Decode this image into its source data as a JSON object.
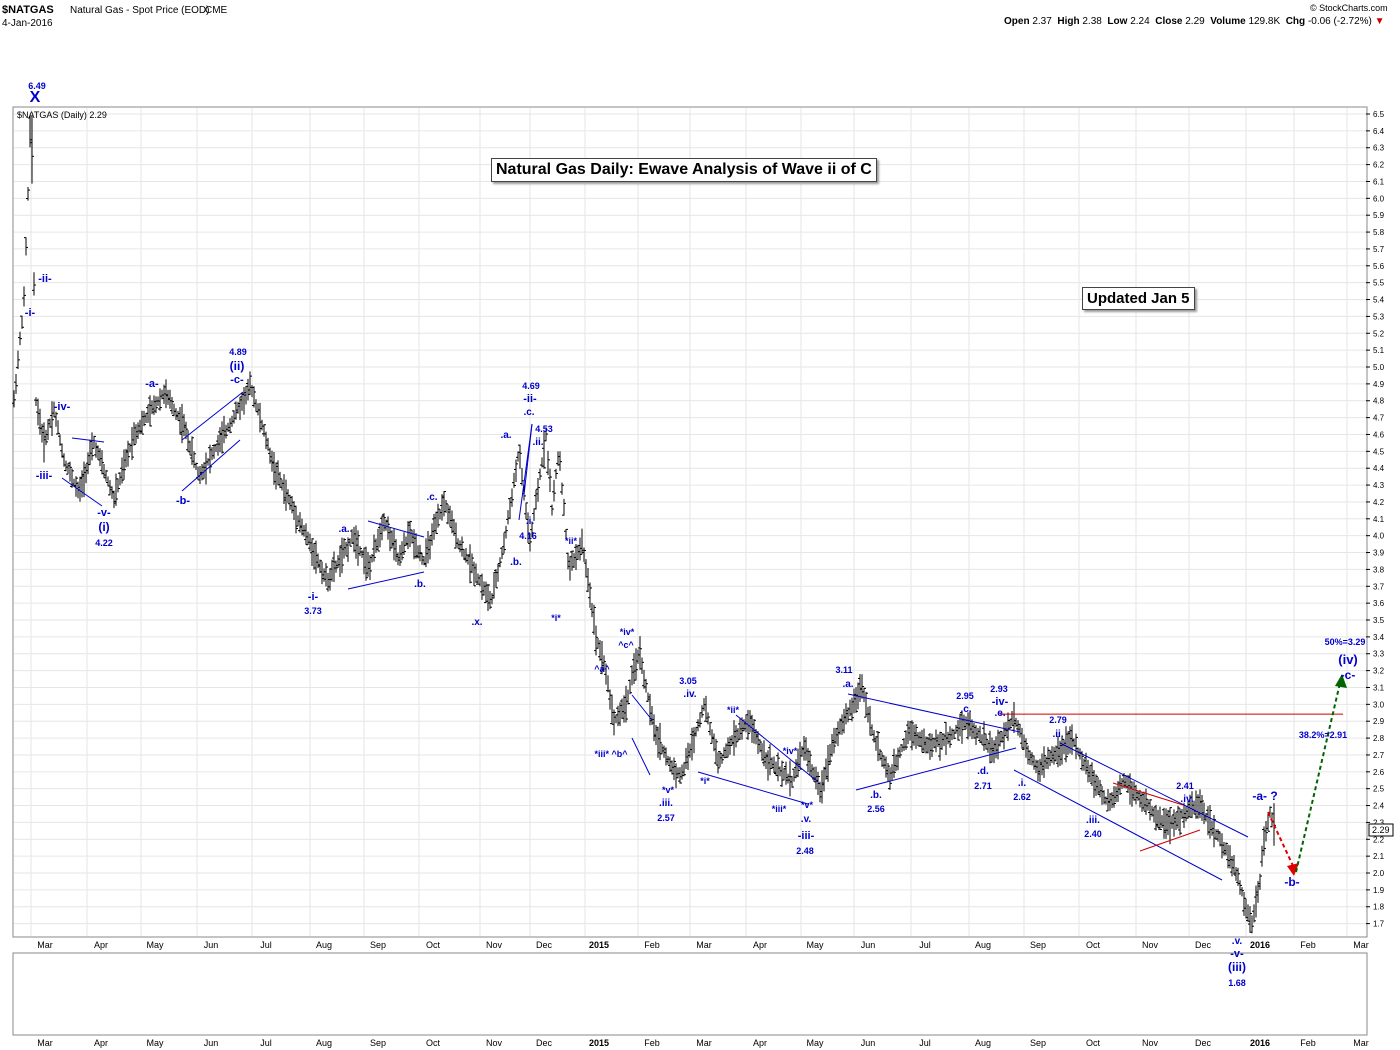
{
  "header": {
    "symbol": "$NATGAS",
    "description": "Natural Gas - Spot Price (EOD)",
    "exchange": "CME",
    "date": "4-Jan-2016",
    "watermark": "© StockCharts.com",
    "open_label": "Open",
    "open": "2.37",
    "high_label": "High",
    "high": "2.38",
    "low_label": "Low",
    "low": "2.24",
    "close_label": "Close",
    "close": "2.29",
    "volume_label": "Volume",
    "volume": "129.8K",
    "chg_label": "Chg",
    "chg": "-0.06 (-2.72%)",
    "chg_arrow": "▼",
    "legend": "$NATGAS (Daily) 2.29"
  },
  "annotations": {
    "title": "Natural Gas Daily: Ewave Analysis of Wave ii of C",
    "updated": "Updated Jan 5"
  },
  "colors": {
    "wave_label": "#0000cc",
    "trend_line": "#0000cc",
    "resistance_line": "#cc0000",
    "bar": "#000000",
    "grid": "#e6e6e6",
    "forecast_down": "#e00000",
    "forecast_up": "#006400"
  },
  "chart_data": {
    "type": "bar",
    "title": "Natural Gas Daily: Ewave Analysis of Wave ii of C",
    "ylim": [
      1.62,
      6.6
    ],
    "y_ticks": [
      "1.7",
      "1.8",
      "1.9",
      "2.0",
      "2.1",
      "2.2",
      "2.3",
      "2.4",
      "2.5",
      "2.6",
      "2.7",
      "2.8",
      "2.9",
      "3.0",
      "3.1",
      "3.2",
      "3.3",
      "3.4",
      "3.5",
      "3.6",
      "3.7",
      "3.8",
      "3.9",
      "4.0",
      "4.1",
      "4.2",
      "4.3",
      "4.4",
      "4.5",
      "4.6",
      "4.7",
      "4.8",
      "4.9",
      "5.0",
      "5.1",
      "5.2",
      "5.3",
      "5.4",
      "5.5",
      "5.6",
      "5.7",
      "5.8",
      "5.9",
      "6.0",
      "6.1",
      "6.2",
      "6.3",
      "6.4",
      "6.5"
    ],
    "x_ticks": [
      "Mar",
      "Apr",
      "May",
      "Jun",
      "Jul",
      "Aug",
      "Sep",
      "Oct",
      "Nov",
      "Dec",
      "2015",
      "Feb",
      "Mar",
      "Apr",
      "May",
      "Jun",
      "Jul",
      "Aug",
      "Sep",
      "Oct",
      "Nov",
      "Dec",
      "2016",
      "Feb",
      "Mar"
    ],
    "last_price_tag": "2.29",
    "price_path": [
      [
        0,
        4.8
      ],
      [
        10,
        5.4
      ],
      [
        17,
        6.49
      ],
      [
        22,
        4.8
      ],
      [
        30,
        4.55
      ],
      [
        40,
        4.75
      ],
      [
        50,
        4.45
      ],
      [
        65,
        4.25
      ],
      [
        80,
        4.55
      ],
      [
        100,
        4.22
      ],
      [
        120,
        4.6
      ],
      [
        150,
        4.85
      ],
      [
        170,
        4.65
      ],
      [
        185,
        4.35
      ],
      [
        210,
        4.6
      ],
      [
        237,
        4.89
      ],
      [
        260,
        4.4
      ],
      [
        280,
        4.15
      ],
      [
        300,
        3.9
      ],
      [
        313,
        3.73
      ],
      [
        325,
        3.85
      ],
      [
        340,
        4.0
      ],
      [
        355,
        3.8
      ],
      [
        370,
        4.1
      ],
      [
        385,
        3.85
      ],
      [
        395,
        4.02
      ],
      [
        410,
        3.85
      ],
      [
        430,
        4.2
      ],
      [
        445,
        3.95
      ],
      [
        460,
        3.8
      ],
      [
        477,
        3.6
      ],
      [
        490,
        3.95
      ],
      [
        505,
        4.5
      ],
      [
        516,
        3.95
      ],
      [
        532,
        4.6
      ],
      [
        538,
        4.16
      ],
      [
        545,
        4.5
      ],
      [
        555,
        3.8
      ],
      [
        568,
        3.95
      ],
      [
        575,
        3.7
      ],
      [
        582,
        3.4
      ],
      [
        590,
        3.25
      ],
      [
        600,
        2.9
      ],
      [
        612,
        3.0
      ],
      [
        625,
        3.32
      ],
      [
        640,
        2.85
      ],
      [
        655,
        2.65
      ],
      [
        667,
        2.57
      ],
      [
        680,
        2.8
      ],
      [
        690,
        3.0
      ],
      [
        705,
        2.65
      ],
      [
        720,
        2.8
      ],
      [
        735,
        2.9
      ],
      [
        750,
        2.7
      ],
      [
        765,
        2.6
      ],
      [
        778,
        2.55
      ],
      [
        790,
        2.75
      ],
      [
        806,
        2.48
      ],
      [
        820,
        2.8
      ],
      [
        835,
        2.95
      ],
      [
        848,
        3.11
      ],
      [
        860,
        2.8
      ],
      [
        876,
        2.56
      ],
      [
        895,
        2.85
      ],
      [
        915,
        2.75
      ],
      [
        935,
        2.8
      ],
      [
        950,
        2.9
      ],
      [
        965,
        2.82
      ],
      [
        980,
        2.72
      ],
      [
        1000,
        2.93
      ],
      [
        1015,
        2.7
      ],
      [
        1025,
        2.62
      ],
      [
        1040,
        2.7
      ],
      [
        1058,
        2.79
      ],
      [
        1070,
        2.65
      ],
      [
        1085,
        2.5
      ],
      [
        1095,
        2.4
      ],
      [
        1110,
        2.55
      ],
      [
        1125,
        2.45
      ],
      [
        1140,
        2.35
      ],
      [
        1155,
        2.28
      ],
      [
        1170,
        2.35
      ],
      [
        1185,
        2.41
      ],
      [
        1200,
        2.25
      ],
      [
        1215,
        2.1
      ],
      [
        1225,
        1.95
      ],
      [
        1237,
        1.68
      ],
      [
        1245,
        1.9
      ],
      [
        1250,
        2.2
      ],
      [
        1256,
        2.36
      ],
      [
        1260,
        2.29
      ]
    ],
    "key_levels": [
      {
        "label": "6.49",
        "value": 6.49
      },
      {
        "label": "4.22",
        "value": 4.22
      },
      {
        "label": "4.89",
        "value": 4.89
      },
      {
        "label": "3.73",
        "value": 3.73
      },
      {
        "label": "4.69",
        "value": 4.69
      },
      {
        "label": "4.53",
        "value": 4.53
      },
      {
        "label": "4.16",
        "value": 4.16
      },
      {
        "label": "3.05",
        "value": 3.05
      },
      {
        "label": "2.57",
        "value": 2.57
      },
      {
        "label": "3.11",
        "value": 3.11
      },
      {
        "label": "2.48",
        "value": 2.48
      },
      {
        "label": "2.56",
        "value": 2.56
      },
      {
        "label": "2.95",
        "value": 2.95
      },
      {
        "label": "2.93",
        "value": 2.93
      },
      {
        "label": "2.71",
        "value": 2.71
      },
      {
        "label": "2.79",
        "value": 2.79
      },
      {
        "label": "2.62",
        "value": 2.62
      },
      {
        "label": "2.40",
        "value": 2.4
      },
      {
        "label": "2.41",
        "value": 2.41
      },
      {
        "label": "1.68",
        "value": 1.68
      },
      {
        "label": "50%=3.29",
        "value": 3.29
      },
      {
        "label": "38.2%=2.91",
        "value": 2.91
      }
    ],
    "resistance_level": 2.93,
    "wave_labels": [
      {
        "t": "X",
        "x": 35,
        "y": 102,
        "size": 16
      },
      {
        "t": "6.49",
        "x": 37,
        "y": 89,
        "size": 9
      },
      {
        "t": "-ii-",
        "x": 45,
        "y": 282,
        "size": 11
      },
      {
        "t": "-i-",
        "x": 30,
        "y": 316,
        "size": 11
      },
      {
        "t": "-iv-",
        "x": 62,
        "y": 410,
        "size": 11
      },
      {
        "t": "-iii-",
        "x": 44,
        "y": 479,
        "size": 11
      },
      {
        "t": "-v-",
        "x": 104,
        "y": 516,
        "size": 11
      },
      {
        "t": "(i)",
        "x": 104,
        "y": 531,
        "size": 12
      },
      {
        "t": "4.22",
        "x": 104,
        "y": 546,
        "size": 9
      },
      {
        "t": "-a-",
        "x": 152,
        "y": 387,
        "size": 11
      },
      {
        "t": "-b-",
        "x": 183,
        "y": 504,
        "size": 11
      },
      {
        "t": "4.89",
        "x": 238,
        "y": 355,
        "size": 9
      },
      {
        "t": "(ii)",
        "x": 237,
        "y": 370,
        "size": 12
      },
      {
        "t": "-c-",
        "x": 237,
        "y": 383,
        "size": 11
      },
      {
        "t": ".a.",
        "x": 344,
        "y": 532,
        "size": 10
      },
      {
        "t": ".b.",
        "x": 420,
        "y": 587,
        "size": 10
      },
      {
        "t": "-i-",
        "x": 313,
        "y": 600,
        "size": 11
      },
      {
        "t": "3.73",
        "x": 313,
        "y": 614,
        "size": 9
      },
      {
        "t": ".c.",
        "x": 432,
        "y": 500,
        "size": 10
      },
      {
        "t": ".x.",
        "x": 477,
        "y": 625,
        "size": 10
      },
      {
        "t": "4.69",
        "x": 531,
        "y": 389,
        "size": 9
      },
      {
        "t": "-ii-",
        "x": 530,
        "y": 402,
        "size": 11
      },
      {
        "t": ".c.",
        "x": 529,
        "y": 415,
        "size": 10
      },
      {
        "t": "4.53",
        "x": 544,
        "y": 432,
        "size": 9
      },
      {
        "t": ".ii.",
        "x": 538,
        "y": 445,
        "size": 10
      },
      {
        "t": ".a.",
        "x": 506,
        "y": 438,
        "size": 10
      },
      {
        "t": ".i.",
        "x": 530,
        "y": 524,
        "size": 10
      },
      {
        "t": "4.16",
        "x": 528,
        "y": 539,
        "size": 9
      },
      {
        "t": ".b.",
        "x": 516,
        "y": 565,
        "size": 10
      },
      {
        "t": "*ii*",
        "x": 571,
        "y": 544,
        "size": 9
      },
      {
        "t": "*i*",
        "x": 556,
        "y": 621,
        "size": 9
      },
      {
        "t": "*iv*",
        "x": 627,
        "y": 635,
        "size": 9
      },
      {
        "t": "^c^",
        "x": 626,
        "y": 648,
        "size": 9
      },
      {
        "t": "^a^",
        "x": 602,
        "y": 672,
        "size": 9
      },
      {
        "t": "*iii* ^b^",
        "x": 611,
        "y": 757,
        "size": 9
      },
      {
        "t": "3.05",
        "x": 688,
        "y": 684,
        "size": 9
      },
      {
        "t": ".iv.",
        "x": 690,
        "y": 697,
        "size": 10
      },
      {
        "t": "*v*",
        "x": 668,
        "y": 793,
        "size": 9
      },
      {
        "t": ".iii.",
        "x": 666,
        "y": 806,
        "size": 10
      },
      {
        "t": "2.57",
        "x": 666,
        "y": 821,
        "size": 9
      },
      {
        "t": "*ii*",
        "x": 733,
        "y": 713,
        "size": 9
      },
      {
        "t": "*i*",
        "x": 705,
        "y": 784,
        "size": 9
      },
      {
        "t": "*iv*",
        "x": 790,
        "y": 754,
        "size": 9
      },
      {
        "t": "*iii*",
        "x": 779,
        "y": 812,
        "size": 9
      },
      {
        "t": "*v*",
        "x": 807,
        "y": 808,
        "size": 9
      },
      {
        "t": ".v.",
        "x": 806,
        "y": 822,
        "size": 10
      },
      {
        "t": "-iii-",
        "x": 806,
        "y": 839,
        "size": 11
      },
      {
        "t": "2.48",
        "x": 805,
        "y": 854,
        "size": 9
      },
      {
        "t": "3.11",
        "x": 844,
        "y": 673,
        "size": 9
      },
      {
        "t": ".a.",
        "x": 848,
        "y": 687,
        "size": 10
      },
      {
        "t": ".b.",
        "x": 876,
        "y": 798,
        "size": 10
      },
      {
        "t": "2.56",
        "x": 876,
        "y": 812,
        "size": 9
      },
      {
        "t": "2.95",
        "x": 965,
        "y": 699,
        "size": 9
      },
      {
        "t": ".c.",
        "x": 966,
        "y": 712,
        "size": 10
      },
      {
        "t": "2.93",
        "x": 999,
        "y": 692,
        "size": 9
      },
      {
        "t": "-iv-",
        "x": 1000,
        "y": 705,
        "size": 11
      },
      {
        "t": ".e.",
        "x": 1000,
        "y": 716,
        "size": 10
      },
      {
        "t": ".d.",
        "x": 983,
        "y": 774,
        "size": 10
      },
      {
        "t": "2.71",
        "x": 983,
        "y": 789,
        "size": 9
      },
      {
        "t": "2.79",
        "x": 1058,
        "y": 723,
        "size": 9
      },
      {
        "t": ".ii.",
        "x": 1058,
        "y": 737,
        "size": 10
      },
      {
        "t": ".i.",
        "x": 1022,
        "y": 786,
        "size": 10
      },
      {
        "t": "2.62",
        "x": 1022,
        "y": 800,
        "size": 9
      },
      {
        "t": ".iii.",
        "x": 1093,
        "y": 823,
        "size": 10
      },
      {
        "t": "2.40",
        "x": 1093,
        "y": 837,
        "size": 9
      },
      {
        "t": "2.41",
        "x": 1185,
        "y": 789,
        "size": 9
      },
      {
        "t": ".iv.",
        "x": 1187,
        "y": 802,
        "size": 10
      },
      {
        "t": ".v.",
        "x": 1237,
        "y": 944,
        "size": 10
      },
      {
        "t": "-v-",
        "x": 1237,
        "y": 957,
        "size": 11
      },
      {
        "t": "(iii)",
        "x": 1237,
        "y": 971,
        "size": 12
      },
      {
        "t": "1.68",
        "x": 1237,
        "y": 986,
        "size": 9
      },
      {
        "t": "-a- ?",
        "x": 1265,
        "y": 800,
        "size": 12
      },
      {
        "t": "-b-",
        "x": 1292,
        "y": 886,
        "size": 12
      },
      {
        "t": "50%=3.29",
        "x": 1345,
        "y": 645,
        "size": 9
      },
      {
        "t": "(iv)",
        "x": 1348,
        "y": 664,
        "size": 13
      },
      {
        "t": "-c-",
        "x": 1348,
        "y": 679,
        "size": 12
      },
      {
        "t": "38.2%=2.91",
        "x": 1323,
        "y": 738,
        "size": 9
      }
    ]
  }
}
